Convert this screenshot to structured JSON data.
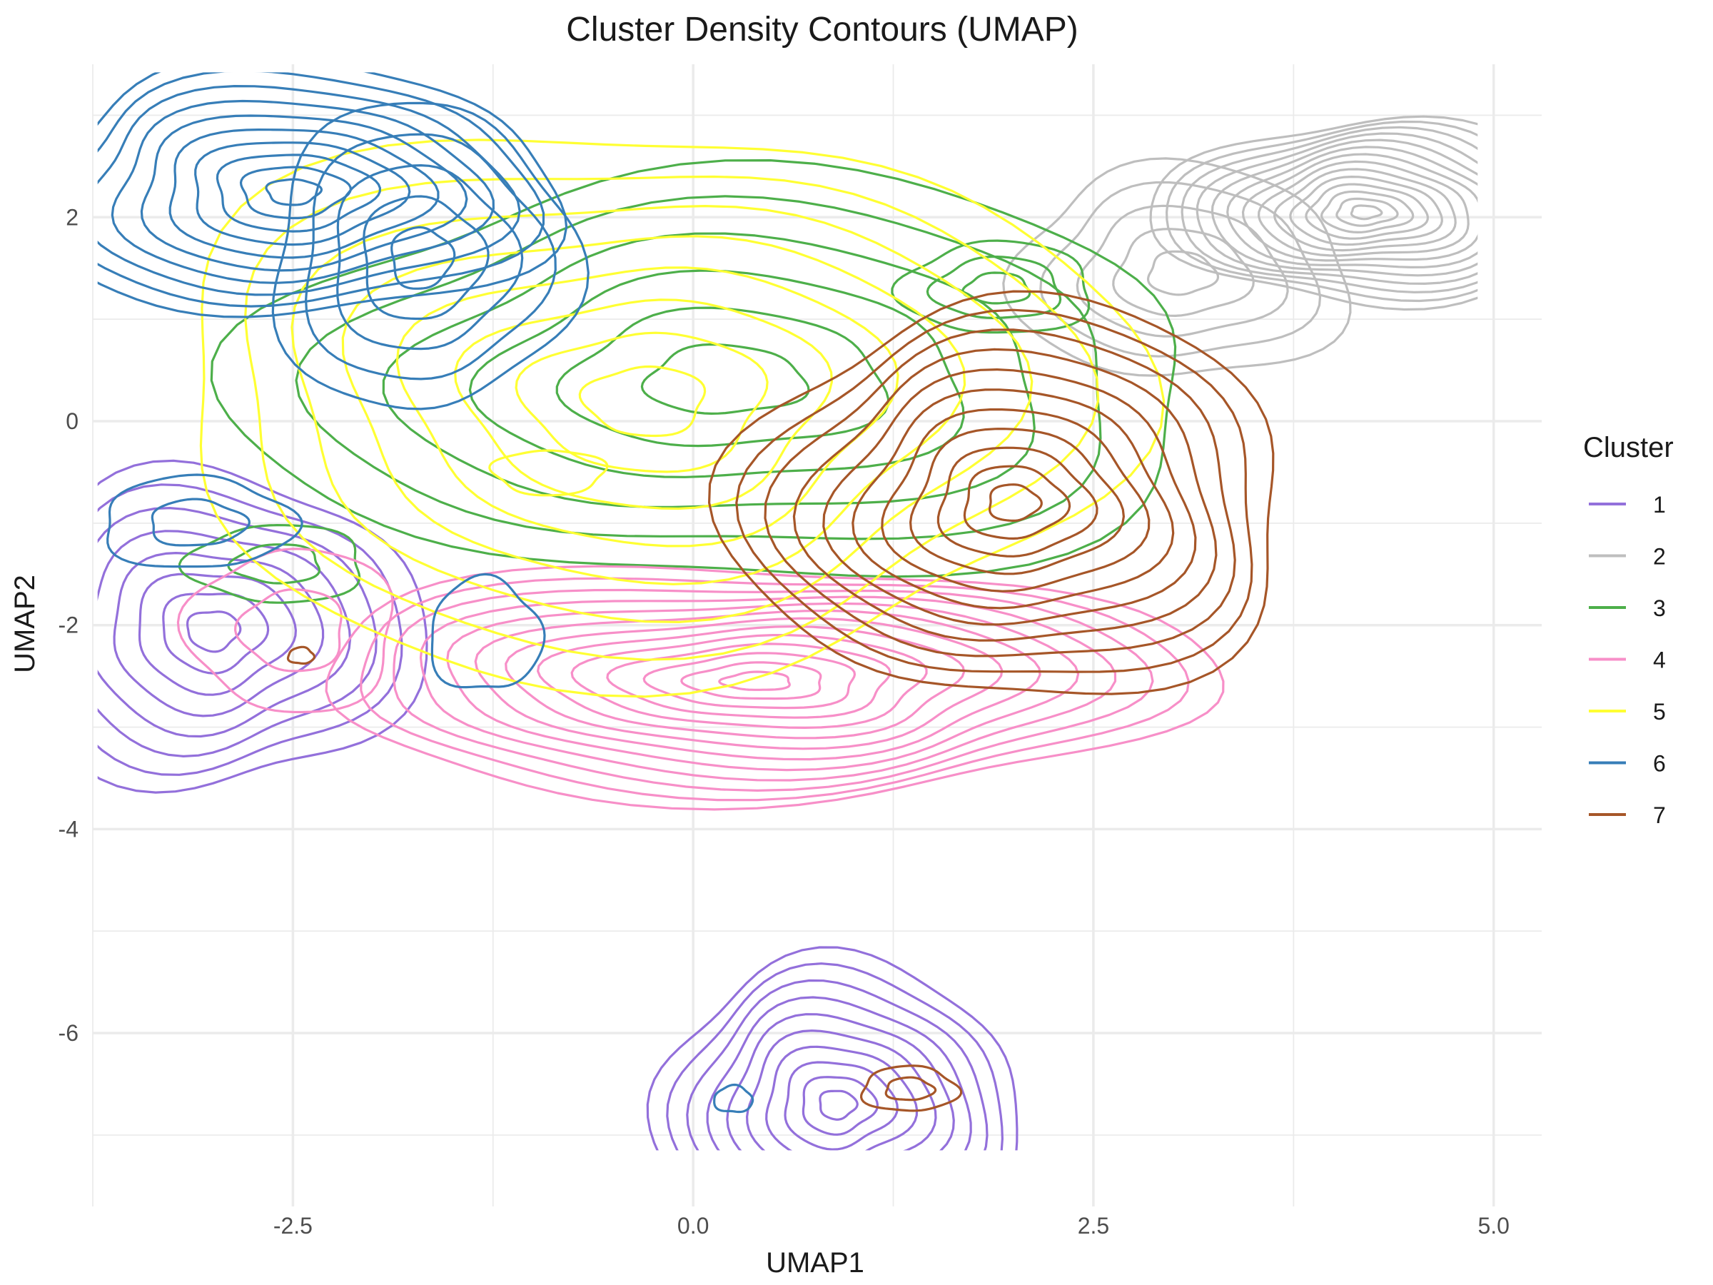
{
  "chart_data": {
    "type": "contour",
    "title": "Cluster Density Contours (UMAP)",
    "xlabel": "UMAP1",
    "ylabel": "UMAP2",
    "xlim": [
      -3.75,
      5.3
    ],
    "ylim": [
      -7.7,
      3.5
    ],
    "x_ticks": [
      -2.5,
      0.0,
      2.5,
      5.0
    ],
    "x_tick_labels": [
      "-2.5",
      "0.0",
      "2.5",
      "5.0"
    ],
    "y_ticks": [
      2,
      0,
      -2,
      -4,
      -6
    ],
    "y_tick_labels": [
      "2",
      "0",
      "-2",
      "-4",
      "-6"
    ],
    "grid": true,
    "legend": {
      "title": "Cluster",
      "position": "right"
    },
    "series": [
      {
        "name": "1",
        "color": "#9370DB",
        "blobs": [
          {
            "cx": -3.0,
            "cy": -2.05,
            "rx": 1.3,
            "ry": 1.55,
            "levels": 8
          },
          {
            "cx": 0.9,
            "cy": -6.7,
            "rx": 1.15,
            "ry": 1.4,
            "levels": 10
          }
        ]
      },
      {
        "name": "2",
        "color": "#BEBEBE",
        "blobs": [
          {
            "cx": 4.2,
            "cy": 2.05,
            "rx": 1.3,
            "ry": 0.9,
            "levels": 14
          },
          {
            "cx": 3.05,
            "cy": 1.45,
            "rx": 1.05,
            "ry": 1.05,
            "levels": 5
          }
        ]
      },
      {
        "name": "3",
        "color": "#4DAF4A",
        "blobs": [
          {
            "cx": 0.2,
            "cy": 0.4,
            "rx": 3.0,
            "ry": 2.0,
            "levels": 6
          },
          {
            "cx": 1.9,
            "cy": 1.3,
            "rx": 0.6,
            "ry": 0.45,
            "levels": 3
          },
          {
            "cx": -2.6,
            "cy": -1.4,
            "rx": 0.55,
            "ry": 0.38,
            "levels": 2
          }
        ]
      },
      {
        "name": "4",
        "color": "#F78FC8",
        "blobs": [
          {
            "cx": 0.4,
            "cy": -2.55,
            "rx": 2.8,
            "ry": 1.15,
            "levels": 13
          },
          {
            "cx": -2.5,
            "cy": -2.05,
            "rx": 0.65,
            "ry": 0.8,
            "levels": 2
          }
        ]
      },
      {
        "name": "5",
        "color": "#FFFF33",
        "blobs": [
          {
            "cx": -0.3,
            "cy": 0.2,
            "rx": 3.0,
            "ry": 2.7,
            "levels": 8
          },
          {
            "cx": -0.9,
            "cy": -0.5,
            "rx": 0.35,
            "ry": 0.22,
            "levels": 1
          }
        ]
      },
      {
        "name": "6",
        "color": "#377EB8",
        "blobs": [
          {
            "cx": -2.5,
            "cy": 2.25,
            "rx": 1.65,
            "ry": 1.25,
            "levels": 10
          },
          {
            "cx": -1.7,
            "cy": 1.6,
            "rx": 0.95,
            "ry": 1.5,
            "levels": 5
          },
          {
            "cx": -3.1,
            "cy": -1.0,
            "rx": 0.6,
            "ry": 0.45,
            "levels": 2
          },
          {
            "cx": -1.3,
            "cy": -2.1,
            "rx": 0.35,
            "ry": 0.55,
            "levels": 1
          },
          {
            "cx": 0.25,
            "cy": -6.65,
            "rx": 0.12,
            "ry": 0.13,
            "levels": 1
          }
        ]
      },
      {
        "name": "7",
        "color": "#A65628",
        "blobs": [
          {
            "cx": 2.0,
            "cy": -0.8,
            "rx": 1.75,
            "ry": 1.95,
            "levels": 11
          },
          {
            "cx": 1.35,
            "cy": -6.55,
            "rx": 0.3,
            "ry": 0.22,
            "levels": 2
          },
          {
            "cx": -2.45,
            "cy": -2.3,
            "rx": 0.08,
            "ry": 0.08,
            "levels": 1
          }
        ]
      }
    ]
  }
}
